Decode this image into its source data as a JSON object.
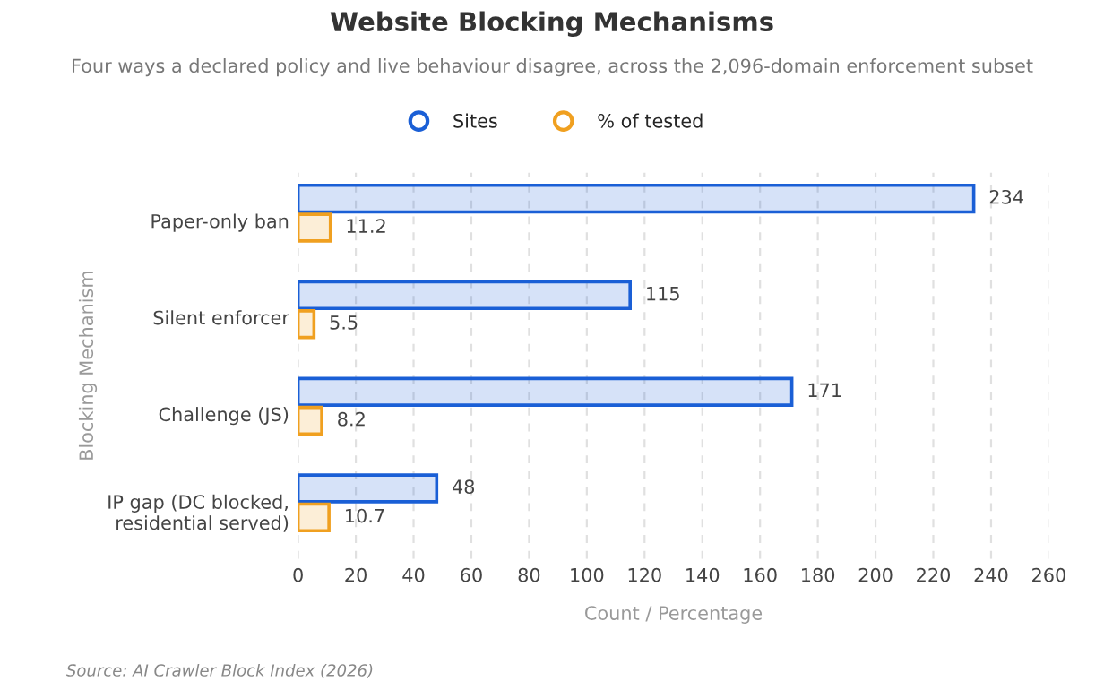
{
  "chart_data": {
    "type": "bar",
    "orientation": "horizontal",
    "title": "Website Blocking Mechanisms",
    "subtitle": "Four ways a declared policy and live behaviour disagree, across the 2,096-domain enforcement subset",
    "categories": [
      "Paper-only ban",
      "Silent enforcer",
      "Challenge (JS)",
      "IP gap (DC blocked,\nresidential served)"
    ],
    "series": [
      {
        "name": "Sites",
        "color": "#1a5fd6",
        "values": [
          234,
          115,
          171,
          48
        ]
      },
      {
        "name": "% of tested",
        "color": "#f0a020",
        "values": [
          11.2,
          5.5,
          8.2,
          10.7
        ]
      }
    ],
    "xlabel": "Count / Percentage",
    "ylabel": "Blocking Mechanism",
    "xlim": [
      0,
      260
    ],
    "xticks": [
      0,
      20,
      40,
      60,
      80,
      100,
      120,
      140,
      160,
      180,
      200,
      220,
      240,
      260
    ],
    "data_labels": true,
    "grid": "x",
    "legend": "top",
    "annotations": [
      "Source: AI Crawler Block Index (2026)"
    ]
  }
}
